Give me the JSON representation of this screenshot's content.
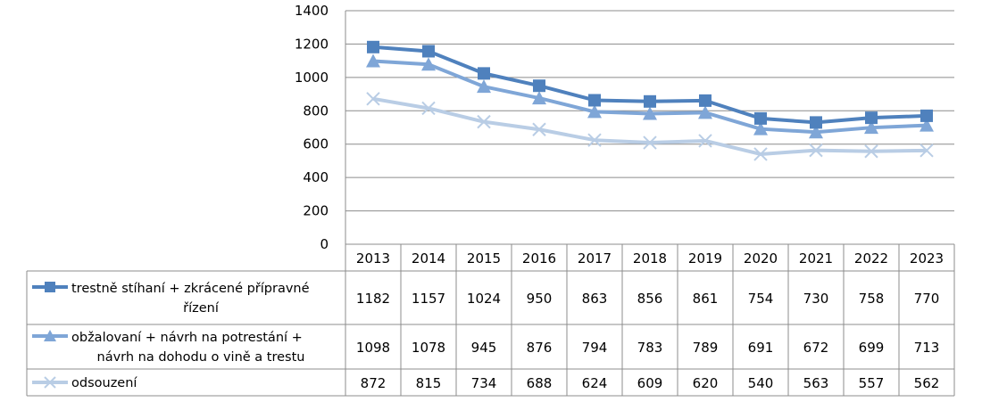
{
  "chart_data": {
    "type": "line",
    "categories": [
      "2013",
      "2014",
      "2015",
      "2016",
      "2017",
      "2018",
      "2019",
      "2020",
      "2021",
      "2022",
      "2023"
    ],
    "ylim": [
      0,
      1400
    ],
    "yticks": [
      0,
      200,
      400,
      600,
      800,
      1000,
      1200,
      1400
    ],
    "grid": true,
    "legend": "data-table-left",
    "series": [
      {
        "name": "trestně stíhaní + zkrácené přípravné řízení",
        "label_lines": [
          "trestně stíhaní + zkrácené přípravné",
          "řízení"
        ],
        "marker": "square",
        "color": "#4f81bd",
        "values": [
          1182,
          1157,
          1024,
          950,
          863,
          856,
          861,
          754,
          730,
          758,
          770
        ]
      },
      {
        "name": "obžalovaní + návrh na potrestání + návrh na dohodu o vině a trestu",
        "label_lines": [
          "obžalovaní + návrh na potrestání +",
          "návrh na dohodu o vině a trestu"
        ],
        "marker": "triangle",
        "color": "#7fa6d7",
        "values": [
          1098,
          1078,
          945,
          876,
          794,
          783,
          789,
          691,
          672,
          699,
          713
        ]
      },
      {
        "name": "odsouzení",
        "label_lines": [
          "odsouzení"
        ],
        "marker": "x",
        "color": "#b9cde5",
        "values": [
          872,
          815,
          734,
          688,
          624,
          609,
          620,
          540,
          563,
          557,
          562
        ]
      }
    ]
  }
}
